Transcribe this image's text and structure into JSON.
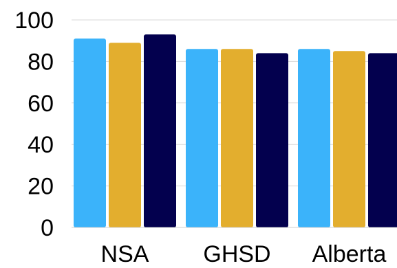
{
  "chart_data": {
    "type": "bar",
    "title": "",
    "xlabel": "",
    "ylabel": "",
    "categories": [
      "NSA",
      "GHSD",
      "Alberta"
    ],
    "series": [
      {
        "values": [
          91,
          86,
          86
        ],
        "color": "#3BB3FA"
      },
      {
        "values": [
          89,
          86,
          85
        ],
        "color": "#E3AE2E"
      },
      {
        "values": [
          93,
          84,
          84
        ],
        "color": "#03004E"
      }
    ],
    "ylim": [
      0,
      100
    ],
    "yticks": [
      "0",
      "20",
      "40",
      "60",
      "80",
      "100"
    ],
    "grid": true,
    "legend": "none"
  }
}
